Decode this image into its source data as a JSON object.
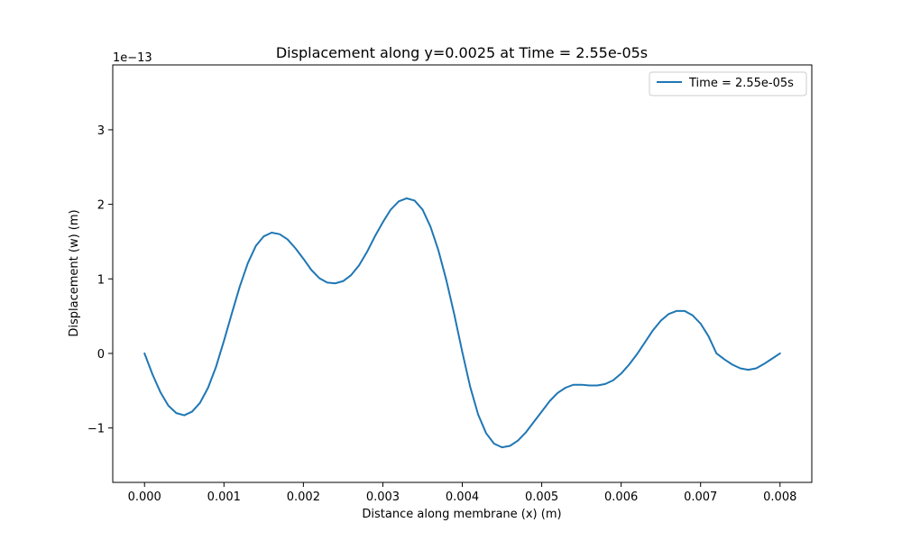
{
  "chart_data": {
    "type": "line",
    "title": "Displacement along y=0.0025 at Time = 2.55e-05s",
    "xlabel": "Distance along membrane (x) (m)",
    "ylabel": "Displacement (w) (m)",
    "y_offset_label": "1e−13",
    "xlim": [
      -0.0004,
      0.0084
    ],
    "ylim": [
      -1.73,
      3.87
    ],
    "x_ticks": [
      0.0,
      0.001,
      0.002,
      0.003,
      0.004,
      0.005,
      0.006,
      0.007,
      0.008
    ],
    "x_tick_labels": [
      "0.000",
      "0.001",
      "0.002",
      "0.003",
      "0.004",
      "0.005",
      "0.006",
      "0.007",
      "0.008"
    ],
    "y_ticks": [
      -1,
      0,
      1,
      2,
      3
    ],
    "y_tick_labels": [
      "−1",
      "0",
      "1",
      "2",
      "3"
    ],
    "grid": false,
    "legend_position": "top-right",
    "series": [
      {
        "name": "Time = 2.55e-05s",
        "color": "#1f77b4",
        "x": [
          0.0,
          0.0001,
          0.0002,
          0.0003,
          0.0004,
          0.0005,
          0.0006,
          0.0007,
          0.0008,
          0.0009,
          0.001,
          0.0011,
          0.0012,
          0.0013,
          0.0014,
          0.0015,
          0.0016,
          0.0017,
          0.0018,
          0.0019,
          0.002,
          0.0021,
          0.0022,
          0.0023,
          0.0024,
          0.0025,
          0.0026,
          0.0027,
          0.0028,
          0.0029,
          0.003,
          0.0031,
          0.0032,
          0.0033,
          0.0034,
          0.0035,
          0.0036,
          0.0037,
          0.0038,
          0.0039,
          0.004,
          0.0041,
          0.0042,
          0.0043,
          0.0044,
          0.0045,
          0.0046,
          0.0047,
          0.0048,
          0.0049,
          0.005,
          0.0051,
          0.0052,
          0.0053,
          0.0054,
          0.0055,
          0.0056,
          0.0057,
          0.0058,
          0.0059,
          0.006,
          0.0061,
          0.0062,
          0.0063,
          0.0064,
          0.0065,
          0.0066,
          0.0067,
          0.0068,
          0.0069,
          0.007,
          0.0071,
          0.0072,
          0.0073,
          0.0074,
          0.0075,
          0.0076,
          0.0077,
          0.0078,
          0.0079,
          0.008
        ],
        "y": [
          0.0,
          -0.28,
          -0.52,
          -0.7,
          -0.8,
          -0.83,
          -0.78,
          -0.66,
          -0.46,
          -0.18,
          0.17,
          0.54,
          0.9,
          1.21,
          1.44,
          1.57,
          1.62,
          1.6,
          1.53,
          1.41,
          1.27,
          1.12,
          1.01,
          0.95,
          0.94,
          0.97,
          1.05,
          1.18,
          1.36,
          1.57,
          1.76,
          1.93,
          2.04,
          2.08,
          2.05,
          1.93,
          1.7,
          1.38,
          0.98,
          0.52,
          0.02,
          -0.45,
          -0.82,
          -1.07,
          -1.21,
          -1.26,
          -1.24,
          -1.17,
          -1.06,
          -0.92,
          -0.78,
          -0.64,
          -0.53,
          -0.46,
          -0.42,
          -0.42,
          -0.43,
          -0.43,
          -0.41,
          -0.36,
          -0.27,
          -0.15,
          -0.01,
          0.15,
          0.31,
          0.44,
          0.53,
          0.57,
          0.57,
          0.51,
          0.4,
          0.23,
          0.0,
          -0.08,
          -0.15,
          -0.2,
          -0.22,
          -0.2,
          -0.14,
          -0.07,
          0.0
        ]
      }
    ]
  }
}
